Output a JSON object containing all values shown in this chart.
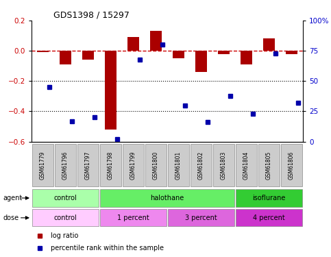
{
  "title": "GDS1398 / 15297",
  "samples": [
    "GSM61779",
    "GSM61796",
    "GSM61797",
    "GSM61798",
    "GSM61799",
    "GSM61800",
    "GSM61801",
    "GSM61802",
    "GSM61803",
    "GSM61804",
    "GSM61805",
    "GSM61806"
  ],
  "log_ratio": [
    -0.01,
    -0.09,
    -0.06,
    -0.52,
    0.09,
    0.13,
    -0.05,
    -0.14,
    -0.02,
    -0.09,
    0.08,
    -0.02
  ],
  "percentile": [
    45,
    17,
    20,
    2,
    68,
    80,
    30,
    16,
    38,
    23,
    73,
    32
  ],
  "ylim_left": [
    -0.6,
    0.2
  ],
  "ylim_right": [
    0,
    100
  ],
  "yticks_left": [
    -0.6,
    -0.4,
    -0.2,
    0.0,
    0.2
  ],
  "yticks_right": [
    0,
    25,
    50,
    75,
    100
  ],
  "bar_color": "#aa0000",
  "dot_color": "#0000aa",
  "agent_groups": [
    {
      "label": "control",
      "start": 0,
      "end": 3,
      "color": "#aaffaa"
    },
    {
      "label": "halothane",
      "start": 3,
      "end": 9,
      "color": "#66ee66"
    },
    {
      "label": "isoflurane",
      "start": 9,
      "end": 12,
      "color": "#33cc33"
    }
  ],
  "dose_groups": [
    {
      "label": "control",
      "start": 0,
      "end": 3,
      "color": "#ffccff"
    },
    {
      "label": "1 percent",
      "start": 3,
      "end": 6,
      "color": "#ee88ee"
    },
    {
      "label": "3 percent",
      "start": 6,
      "end": 9,
      "color": "#dd66dd"
    },
    {
      "label": "4 percent",
      "start": 9,
      "end": 12,
      "color": "#cc33cc"
    }
  ],
  "legend_red_label": "log ratio",
  "legend_blue_label": "percentile rank within the sample",
  "hline_color": "#cc0000",
  "dot_line_color": "#000000",
  "background_color": "#ffffff",
  "tick_color_left": "#cc0000",
  "tick_color_right": "#0000cc",
  "sample_box_color": "#cccccc",
  "bar_width": 0.5
}
